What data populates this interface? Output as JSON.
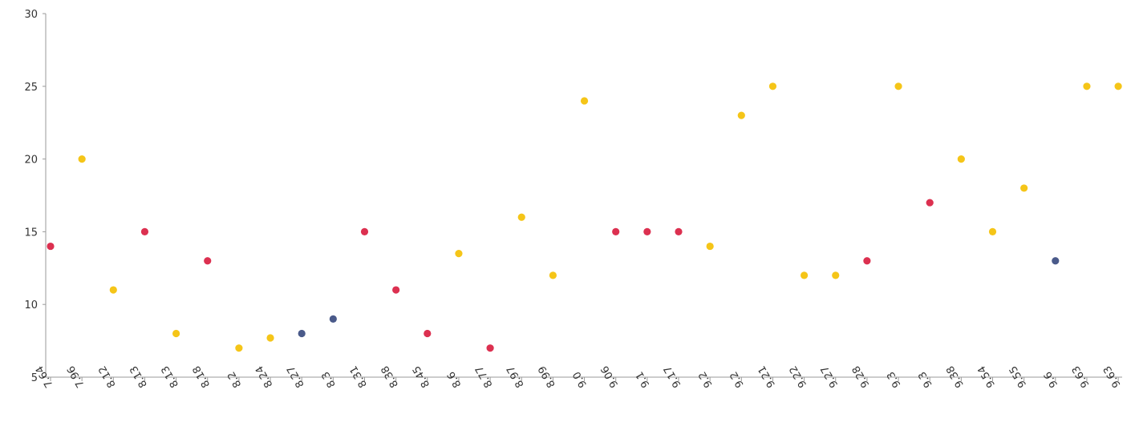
{
  "chart_data": {
    "type": "scatter",
    "title": "",
    "xlabel": "",
    "ylabel": "",
    "ylim": [
      5,
      30
    ],
    "yticks": [
      5,
      10,
      15,
      20,
      25,
      30
    ],
    "grid": false,
    "legend": "none",
    "colors": {
      "yellow": "#f5c518",
      "red": "#dc3050",
      "navy": "#4a5a8a",
      "axis": "#9a9a9a",
      "text": "#333333"
    },
    "points": [
      {
        "x": "7.64",
        "y": 14,
        "color": "red"
      },
      {
        "x": "7.96",
        "y": 20,
        "color": "yellow"
      },
      {
        "x": "8.12",
        "y": 11,
        "color": "yellow"
      },
      {
        "x": "8.13",
        "y": 15,
        "color": "red"
      },
      {
        "x": "8.13",
        "y": 8,
        "color": "yellow"
      },
      {
        "x": "8.18",
        "y": 13,
        "color": "red"
      },
      {
        "x": "8.2",
        "y": 7,
        "color": "yellow"
      },
      {
        "x": "8.24",
        "y": 7.7,
        "color": "yellow"
      },
      {
        "x": "8.27",
        "y": 8,
        "color": "navy"
      },
      {
        "x": "8.3",
        "y": 9,
        "color": "navy"
      },
      {
        "x": "8.31",
        "y": 15,
        "color": "red"
      },
      {
        "x": "8.38",
        "y": 11,
        "color": "red"
      },
      {
        "x": "8.45",
        "y": 8,
        "color": "red"
      },
      {
        "x": "8.6",
        "y": 13.5,
        "color": "yellow"
      },
      {
        "x": "8.77",
        "y": 7,
        "color": "red"
      },
      {
        "x": "8.97",
        "y": 16,
        "color": "yellow"
      },
      {
        "x": "8.99",
        "y": 12,
        "color": "yellow"
      },
      {
        "x": "9.0",
        "y": 24,
        "color": "yellow"
      },
      {
        "x": "9.06",
        "y": 15,
        "color": "red"
      },
      {
        "x": "9.1",
        "y": 15,
        "color": "red"
      },
      {
        "x": "9.17",
        "y": 15,
        "color": "red"
      },
      {
        "x": "9.2",
        "y": 14,
        "color": "yellow"
      },
      {
        "x": "9.2",
        "y": 23,
        "color": "yellow"
      },
      {
        "x": "9.21",
        "y": 25,
        "color": "yellow"
      },
      {
        "x": "9.22",
        "y": 12,
        "color": "yellow"
      },
      {
        "x": "9.27",
        "y": 12,
        "color": "yellow"
      },
      {
        "x": "9.28",
        "y": 13,
        "color": "red"
      },
      {
        "x": "9.3",
        "y": 25,
        "color": "yellow"
      },
      {
        "x": "9.3",
        "y": 17,
        "color": "red"
      },
      {
        "x": "9.38",
        "y": 20,
        "color": "yellow"
      },
      {
        "x": "9.54",
        "y": 15,
        "color": "yellow"
      },
      {
        "x": "9.55",
        "y": 18,
        "color": "yellow"
      },
      {
        "x": "9.6",
        "y": 13,
        "color": "navy"
      },
      {
        "x": "9.63",
        "y": 25,
        "color": "yellow"
      },
      {
        "x": "9.63",
        "y": 25,
        "color": "yellow"
      }
    ]
  }
}
